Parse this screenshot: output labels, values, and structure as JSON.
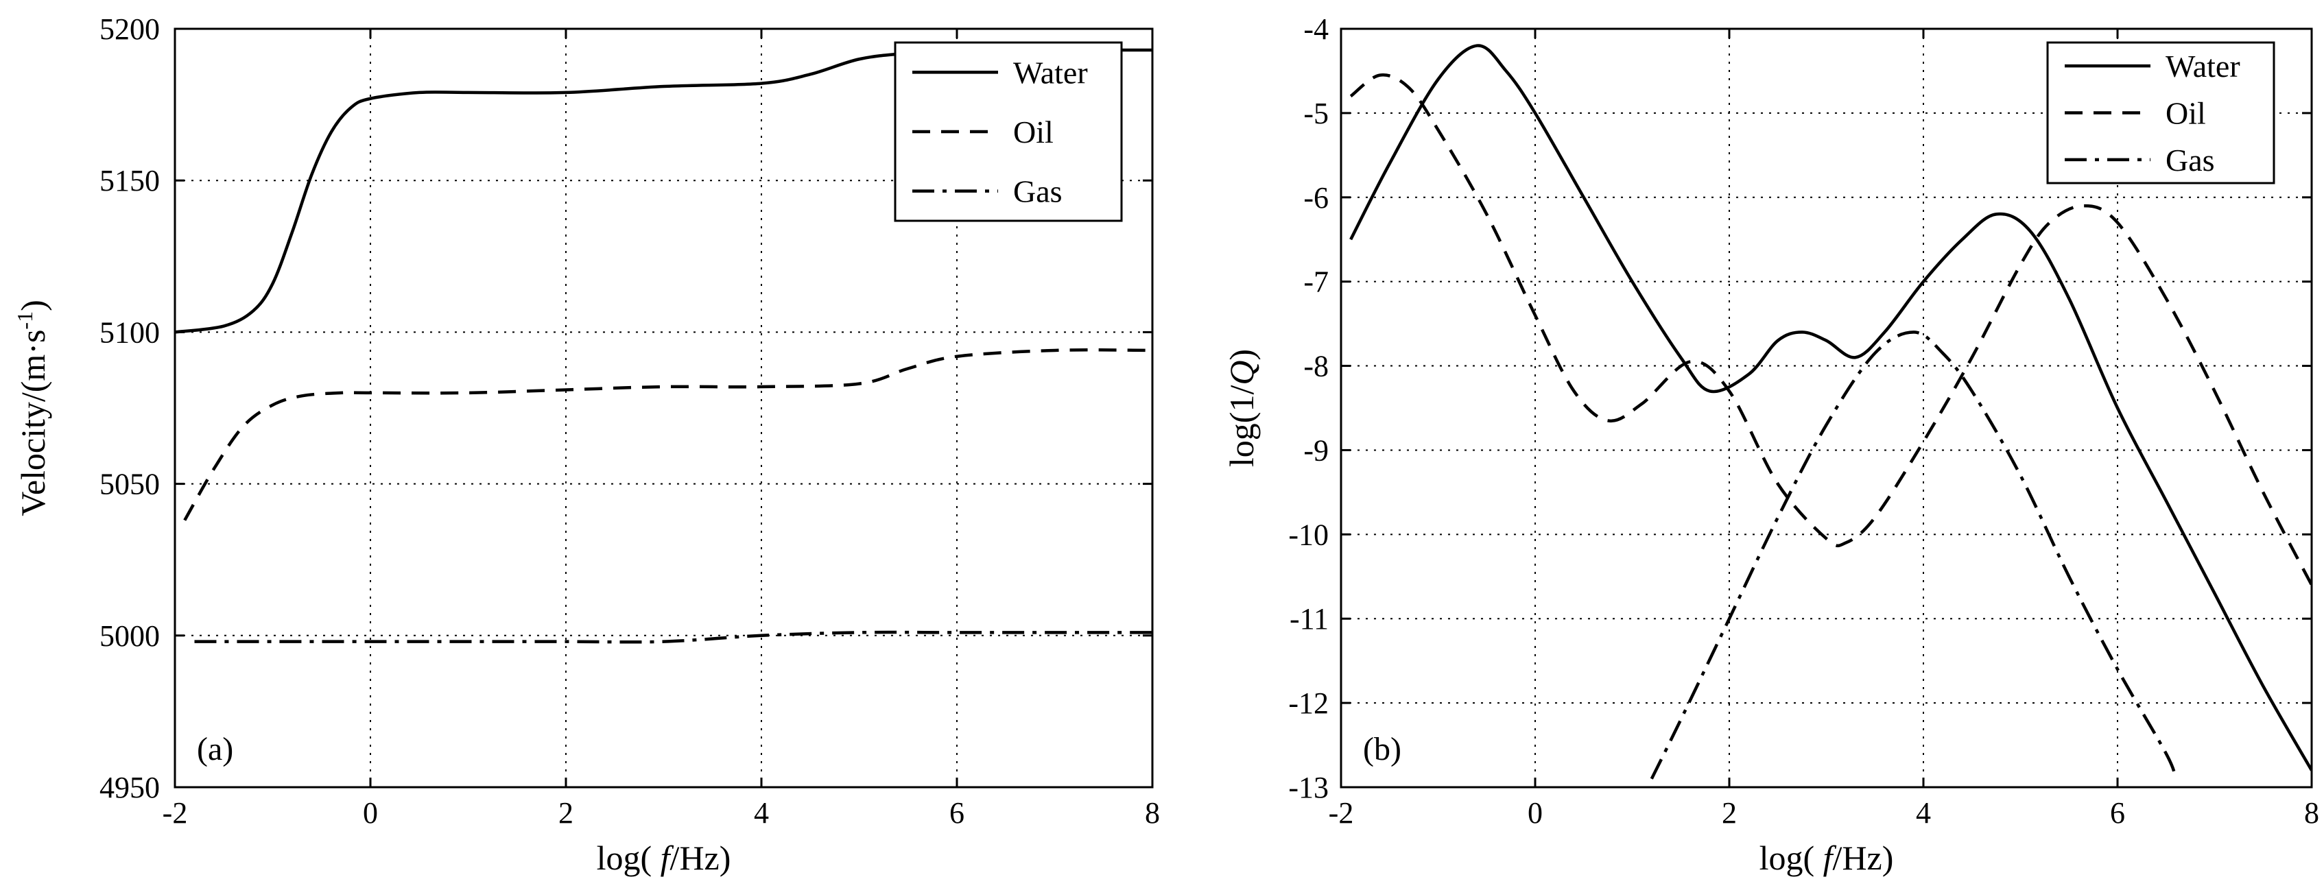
{
  "chart_data": [
    {
      "type": "line",
      "panel_label": "(a)",
      "xlabel_prefix": "log(",
      "xlabel_var": "f",
      "xlabel_suffix": "/Hz)",
      "ylabel": "Velocity/(m·s",
      "ylabel_sup": "-1",
      "ylabel_close": ")",
      "xlim": [
        -2,
        8
      ],
      "ylim": [
        4950,
        5200
      ],
      "xticks": [
        -2,
        0,
        2,
        4,
        6,
        8
      ],
      "yticks": [
        4950,
        5000,
        5050,
        5100,
        5150,
        5200
      ],
      "grid": true,
      "legend_position": "top-right",
      "series": [
        {
          "name": "Water",
          "style": "solid",
          "x": [
            -2,
            -1.5,
            -1.2,
            -1,
            -0.8,
            -0.6,
            -0.4,
            -0.2,
            0,
            0.5,
            1,
            2,
            3,
            4,
            4.5,
            5,
            5.5,
            6,
            7,
            8
          ],
          "y": [
            5100,
            5102,
            5107,
            5116,
            5133,
            5152,
            5166,
            5174,
            5177,
            5179,
            5179,
            5179,
            5181,
            5182,
            5185,
            5190,
            5192,
            5193,
            5193,
            5193
          ]
        },
        {
          "name": "Oil",
          "style": "dashed",
          "x": [
            -1.9,
            -1.6,
            -1.3,
            -1,
            -0.7,
            -0.3,
            0,
            1,
            2,
            3,
            4,
            5,
            5.5,
            6,
            7,
            8
          ],
          "y": [
            5038,
            5055,
            5069,
            5076,
            5079,
            5080,
            5080,
            5080,
            5081,
            5082,
            5082,
            5083,
            5088,
            5092,
            5094,
            5094
          ]
        },
        {
          "name": "Gas",
          "style": "dashdot",
          "x": [
            -1.8,
            -1,
            0,
            1,
            2,
            3,
            4,
            5,
            6,
            7,
            8
          ],
          "y": [
            4998,
            4998,
            4998,
            4998,
            4998,
            4998,
            5000,
            5001,
            5001,
            5001,
            5001
          ]
        }
      ]
    },
    {
      "type": "line",
      "panel_label": "(b)",
      "xlabel_prefix": "log(",
      "xlabel_var": "f",
      "xlabel_suffix": "/Hz)",
      "ylabel_prefix": "log(1/",
      "ylabel_var": "Q",
      "ylabel_suffix": ")",
      "xlim": [
        -2,
        8
      ],
      "ylim": [
        -13,
        -4
      ],
      "xticks": [
        -2,
        0,
        2,
        4,
        6,
        8
      ],
      "yticks": [
        -13,
        -12,
        -11,
        -10,
        -9,
        -8,
        -7,
        -6,
        -5,
        -4
      ],
      "grid": true,
      "legend_position": "top-right",
      "series": [
        {
          "name": "Water",
          "style": "solid",
          "x": [
            -1.9,
            -1.5,
            -1,
            -0.6,
            -0.3,
            0,
            0.5,
            1,
            1.5,
            1.8,
            2.2,
            2.5,
            2.75,
            3,
            3.3,
            3.6,
            4,
            4.4,
            4.75,
            5.1,
            5.5,
            6,
            6.5,
            7,
            7.5,
            8
          ],
          "y": [
            -6.5,
            -5.6,
            -4.6,
            -4.2,
            -4.5,
            -5.0,
            -6.0,
            -7.0,
            -7.9,
            -8.3,
            -8.1,
            -7.7,
            -7.6,
            -7.7,
            -7.9,
            -7.6,
            -7.0,
            -6.5,
            -6.2,
            -6.4,
            -7.2,
            -8.5,
            -9.6,
            -10.7,
            -11.8,
            -12.8
          ]
        },
        {
          "name": "Oil",
          "style": "dashed",
          "x": [
            -1.9,
            -1.6,
            -1.3,
            -1,
            -0.5,
            0,
            0.4,
            0.75,
            1.1,
            1.6,
            2,
            2.5,
            3,
            3.2,
            3.5,
            4,
            4.5,
            5,
            5.3,
            5.65,
            6,
            6.5,
            7,
            7.5,
            8
          ],
          "y": [
            -4.8,
            -4.55,
            -4.7,
            -5.2,
            -6.2,
            -7.4,
            -8.3,
            -8.65,
            -8.45,
            -7.95,
            -8.3,
            -9.4,
            -10.05,
            -10.1,
            -9.8,
            -8.9,
            -7.9,
            -6.8,
            -6.3,
            -6.1,
            -6.3,
            -7.2,
            -8.3,
            -9.5,
            -10.6
          ]
        },
        {
          "name": "Gas",
          "style": "dashdot",
          "x": [
            1.2,
            1.5,
            2,
            2.5,
            3,
            3.5,
            3.9,
            4.2,
            4.5,
            5,
            5.5,
            6,
            6.5,
            6.6
          ],
          "y": [
            -12.9,
            -12.2,
            -11.0,
            -9.8,
            -8.7,
            -7.85,
            -7.6,
            -7.85,
            -8.3,
            -9.3,
            -10.5,
            -11.6,
            -12.6,
            -12.9
          ]
        }
      ]
    }
  ]
}
